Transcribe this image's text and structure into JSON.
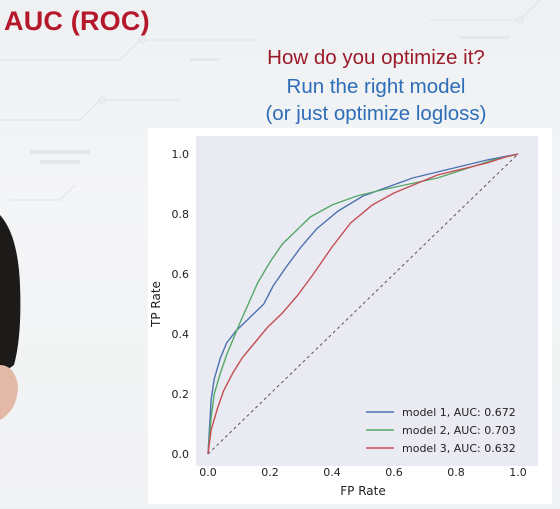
{
  "slide": {
    "title": "AUC (ROC)",
    "question": "How do you optimize it?",
    "answer_line1": "Run the right model",
    "answer_line2": "(or just optimize logloss)"
  },
  "colors": {
    "title": "#b5172b",
    "question": "#9a1b2a",
    "answer": "#2e6db8",
    "plot_background": "#eaeaf2"
  },
  "chart_data": {
    "type": "line",
    "xlabel": "FP Rate",
    "ylabel": "TP Rate",
    "xlim": [
      0.0,
      1.0
    ],
    "ylim": [
      0.0,
      1.0
    ],
    "xticks": [
      "0.0",
      "0.2",
      "0.4",
      "0.6",
      "0.8",
      "1.0"
    ],
    "yticks": [
      "0.0",
      "0.2",
      "0.4",
      "0.6",
      "0.8",
      "1.0"
    ],
    "grid": false,
    "legend_position": "bottom-right",
    "diagonal": {
      "x": [
        0,
        1
      ],
      "y": [
        0,
        1
      ],
      "style": "dashed",
      "color": "#555555"
    },
    "series": [
      {
        "name": "model 1, AUC: 0.672",
        "color": "#4c72b0",
        "x": [
          0,
          0.01,
          0.02,
          0.04,
          0.06,
          0.09,
          0.12,
          0.15,
          0.18,
          0.21,
          0.25,
          0.3,
          0.35,
          0.42,
          0.5,
          0.58,
          0.66,
          0.74,
          0.82,
          0.9,
          1.0
        ],
        "y": [
          0,
          0.18,
          0.25,
          0.32,
          0.37,
          0.41,
          0.44,
          0.47,
          0.5,
          0.56,
          0.62,
          0.69,
          0.75,
          0.81,
          0.86,
          0.89,
          0.92,
          0.94,
          0.96,
          0.98,
          1.0
        ]
      },
      {
        "name": "model 2, AUC: 0.703",
        "color": "#55a868",
        "x": [
          0,
          0.01,
          0.02,
          0.04,
          0.06,
          0.08,
          0.1,
          0.13,
          0.16,
          0.2,
          0.24,
          0.28,
          0.33,
          0.4,
          0.48,
          0.56,
          0.65,
          0.74,
          0.83,
          0.92,
          1.0
        ],
        "y": [
          0,
          0.12,
          0.2,
          0.27,
          0.33,
          0.38,
          0.43,
          0.5,
          0.57,
          0.64,
          0.7,
          0.74,
          0.79,
          0.83,
          0.86,
          0.88,
          0.9,
          0.92,
          0.95,
          0.98,
          1.0
        ]
      },
      {
        "name": "model 3, AUC: 0.632",
        "color": "#c44e52",
        "x": [
          0,
          0.01,
          0.03,
          0.05,
          0.08,
          0.11,
          0.15,
          0.19,
          0.24,
          0.29,
          0.34,
          0.4,
          0.46,
          0.53,
          0.6,
          0.67,
          0.74,
          0.82,
          0.9,
          0.96,
          1.0
        ],
        "y": [
          0,
          0.08,
          0.15,
          0.21,
          0.27,
          0.32,
          0.37,
          0.42,
          0.47,
          0.53,
          0.6,
          0.69,
          0.77,
          0.83,
          0.87,
          0.9,
          0.93,
          0.95,
          0.97,
          0.99,
          1.0
        ]
      }
    ]
  }
}
